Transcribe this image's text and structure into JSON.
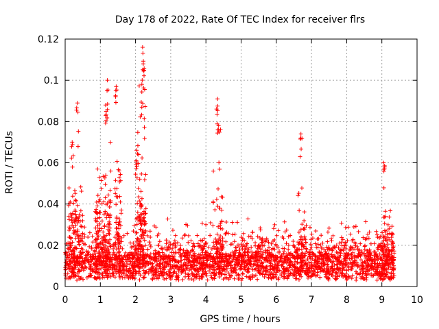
{
  "chart_data": {
    "type": "scatter",
    "title": "Day 178 of 2022, Rate Of TEC Index for receiver flrs",
    "xlabel": "GPS time / hours",
    "ylabel": "ROTI / TECUs",
    "xlim": [
      0,
      10
    ],
    "ylim": [
      0,
      0.12
    ],
    "xticks": [
      "0",
      "1",
      "2",
      "3",
      "4",
      "5",
      "6",
      "7",
      "8",
      "9",
      "10"
    ],
    "yticks": [
      "0",
      "0.02",
      "0.04",
      "0.06",
      "0.08",
      "0.1",
      "0.12"
    ],
    "grid": true,
    "marker": "+",
    "color": "#ff0000",
    "series": [
      {
        "name": "ROTI",
        "segments": [
          {
            "x_start": 0.0,
            "x_end": 9.35,
            "baseline": 0.012,
            "spread": 0.022,
            "count": 2600
          },
          {
            "x_start": 0.1,
            "x_end": 0.5,
            "baseline": 0.03,
            "spread": 0.04,
            "count": 120
          },
          {
            "x_start": 0.85,
            "x_end": 1.3,
            "baseline": 0.035,
            "spread": 0.05,
            "count": 140
          },
          {
            "x_start": 1.4,
            "x_end": 1.6,
            "baseline": 0.03,
            "spread": 0.06,
            "count": 60
          },
          {
            "x_start": 2.0,
            "x_end": 2.3,
            "baseline": 0.03,
            "spread": 0.08,
            "count": 120
          },
          {
            "x_start": 4.2,
            "x_end": 4.5,
            "baseline": 0.02,
            "spread": 0.06,
            "count": 70
          },
          {
            "x_start": 6.6,
            "x_end": 6.8,
            "baseline": 0.02,
            "spread": 0.05,
            "count": 40
          },
          {
            "x_start": 9.0,
            "x_end": 9.35,
            "baseline": 0.02,
            "spread": 0.035,
            "count": 70
          }
        ],
        "peaks": [
          {
            "x": 0.35,
            "y": 0.089
          },
          {
            "x": 0.2,
            "y": 0.07
          },
          {
            "x": 1.2,
            "y": 0.1
          },
          {
            "x": 1.15,
            "y": 0.088
          },
          {
            "x": 1.45,
            "y": 0.097
          },
          {
            "x": 2.2,
            "y": 0.116
          },
          {
            "x": 2.22,
            "y": 0.108
          },
          {
            "x": 2.18,
            "y": 0.098
          },
          {
            "x": 4.33,
            "y": 0.091
          },
          {
            "x": 4.36,
            "y": 0.078
          },
          {
            "x": 6.7,
            "y": 0.074
          },
          {
            "x": 9.05,
            "y": 0.06
          }
        ]
      }
    ]
  }
}
